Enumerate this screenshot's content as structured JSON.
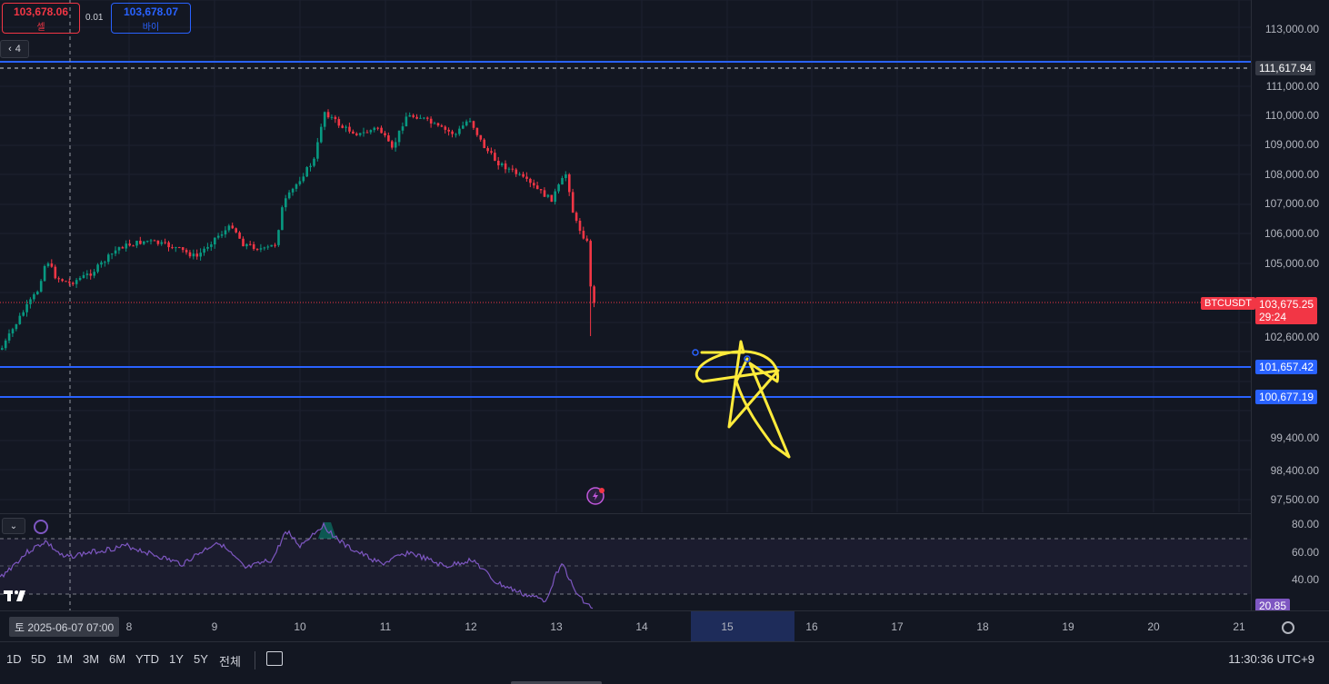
{
  "symbol": "BTCUSDT",
  "trade_panel": {
    "sell_price": "103,678.06",
    "sell_label": "셀",
    "spread": "0.01",
    "buy_price": "103,678.07",
    "buy_label": "바이",
    "collapse_count": "4"
  },
  "price_axis": {
    "labels": [
      "113,000.00",
      "111,000.00",
      "110,000.00",
      "109,000.00",
      "108,000.00",
      "107,000.00",
      "106,000.00",
      "105,000.00",
      "102,600.00",
      "99,400.00",
      "98,400.00",
      "97,500.00"
    ],
    "tags": {
      "crosshair_price": "111,617.94",
      "current_price": "103,675.25",
      "countdown": "29:24",
      "symbol_tag": "BTCUSDT",
      "line_upper": "101,657.42",
      "line_lower": "100,677.19"
    }
  },
  "rsi": {
    "labels": [
      "80.00",
      "60.00",
      "40.00"
    ],
    "value": "20.85"
  },
  "time_axis": {
    "crosshair_date": "토 2025-06-07   07:00",
    "ticks": [
      "8",
      "9",
      "10",
      "11",
      "12",
      "13",
      "14",
      "15",
      "16",
      "17",
      "18",
      "19",
      "20",
      "21"
    ]
  },
  "timeframes": [
    "1D",
    "5D",
    "1M",
    "3M",
    "6M",
    "YTD",
    "1Y",
    "5Y",
    "전체"
  ],
  "clock": "11:30:36 UTC+9",
  "colors": {
    "up": "#089981",
    "down": "#f23645",
    "horizontal_line": "#2962ff",
    "drawing": "#ffeb3b",
    "rsi_line": "#7e57c2"
  },
  "icons": [
    "compare-icon",
    "settings-gear-icon",
    "lightning-alert-icon",
    "tradingview-logo-icon",
    "indicator-settings-icon",
    "chevron-down-icon"
  ]
}
